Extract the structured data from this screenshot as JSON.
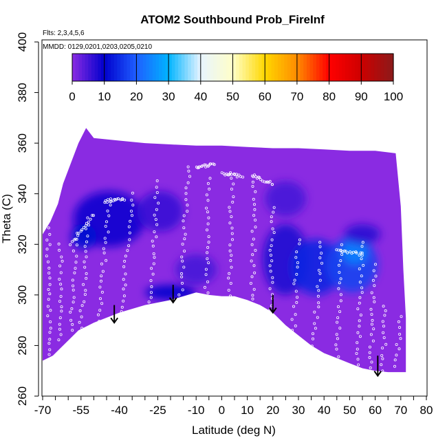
{
  "chart_data": {
    "type": "heatmap",
    "title": "ATOM2 Southbound Prob_FireInf",
    "flights_note": "Flts: 2,3,4,5,6",
    "dates_note": "MMDD: 0129,0201,0203,0205,0210",
    "xlabel": "Latitude (deg N)",
    "ylabel": "Theta (C)",
    "xlim": [
      -70,
      80
    ],
    "ylim": [
      260,
      400
    ],
    "x_tick_values": [
      -70,
      -55,
      -40,
      -25,
      -10,
      0,
      10,
      20,
      30,
      40,
      50,
      60,
      70,
      80
    ],
    "x_tick_labels": [
      "-70",
      "-55",
      "-40",
      "-25",
      "-10",
      "0",
      "10",
      "20",
      "30",
      "40",
      "50",
      "60",
      "70",
      "80"
    ],
    "x_minor_ticks": [
      -65,
      -60,
      -50,
      -45,
      -35,
      -30,
      -20,
      -15,
      -5,
      5,
      15,
      25,
      35,
      45,
      55,
      65,
      75
    ],
    "y_ticks": [
      260,
      280,
      300,
      320,
      340,
      360,
      380,
      400
    ],
    "colorbar": {
      "ticks": [
        0,
        10,
        20,
        30,
        40,
        50,
        60,
        70,
        80,
        90,
        100
      ],
      "colors": [
        "#8a2be2",
        "#0000cd",
        "#1e5fff",
        "#00b4ff",
        "#e8f4ff",
        "#ffffc8",
        "#ffd700",
        "#ff8c00",
        "#ff0000",
        "#cd0000",
        "#8b1a1a"
      ]
    },
    "domain_outline": [
      [
        -70,
        274
      ],
      [
        -66,
        276
      ],
      [
        -60,
        282
      ],
      [
        -56,
        286
      ],
      [
        -50,
        289
      ],
      [
        -40,
        293
      ],
      [
        -30,
        296
      ],
      [
        -20,
        298
      ],
      [
        -15,
        299.5
      ],
      [
        -10,
        301
      ],
      [
        -5,
        300
      ],
      [
        0,
        299.5
      ],
      [
        5,
        299.5
      ],
      [
        10,
        298
      ],
      [
        15,
        296
      ],
      [
        20,
        293
      ],
      [
        25,
        288
      ],
      [
        30,
        284
      ],
      [
        35,
        280
      ],
      [
        40,
        277
      ],
      [
        45,
        275
      ],
      [
        50,
        273
      ],
      [
        55,
        271
      ],
      [
        60,
        270
      ],
      [
        65,
        269.5
      ],
      [
        72,
        269.5
      ],
      [
        72,
        291
      ],
      [
        71,
        310
      ],
      [
        70,
        335
      ],
      [
        68,
        356
      ],
      [
        60,
        357
      ],
      [
        50,
        357
      ],
      [
        40,
        357.5
      ],
      [
        30,
        358
      ],
      [
        20,
        358
      ],
      [
        10,
        358.5
      ],
      [
        0,
        359
      ],
      [
        -10,
        359
      ],
      [
        -20,
        359.5
      ],
      [
        -30,
        360
      ],
      [
        -40,
        361
      ],
      [
        -50,
        362
      ],
      [
        -53,
        366
      ],
      [
        -56,
        360
      ],
      [
        -59,
        352
      ],
      [
        -62,
        344
      ],
      [
        -64,
        336
      ],
      [
        -67,
        329
      ],
      [
        -70,
        324
      ]
    ],
    "enhanced_regions": [
      {
        "center": [
          -44,
          330
        ],
        "radius": [
          14,
          11
        ],
        "value": 9
      },
      {
        "center": [
          -54,
          323
        ],
        "radius": [
          5,
          5
        ],
        "value": 11
      },
      {
        "center": [
          -24,
          333
        ],
        "radius": [
          9,
          8
        ],
        "value": 6
      },
      {
        "center": [
          -10,
          310
        ],
        "radius": [
          8,
          6
        ],
        "value": 5
      },
      {
        "center": [
          25,
          314
        ],
        "radius": [
          9,
          14
        ],
        "value": 8
      },
      {
        "center": [
          25,
          338
        ],
        "radius": [
          8,
          7
        ],
        "value": 5
      },
      {
        "center": [
          37,
          311
        ],
        "radius": [
          10,
          11
        ],
        "value": 14
      },
      {
        "center": [
          51,
          312
        ],
        "radius": [
          10,
          11
        ],
        "value": 17
      },
      {
        "center": [
          52,
          317
        ],
        "radius": [
          5,
          5
        ],
        "value": 24
      },
      {
        "center": [
          55,
          324
        ],
        "radius": [
          7,
          4
        ],
        "value": 7
      },
      {
        "center": [
          -20,
          301
        ],
        "radius": [
          10,
          3
        ],
        "value": 10
      }
    ],
    "arrows": [
      {
        "x": -42,
        "y_top": 296,
        "y_tip": 289
      },
      {
        "x": -19,
        "y_top": 304,
        "y_tip": 297
      },
      {
        "x": 20,
        "y_top": 300,
        "y_tip": 293
      },
      {
        "x": 61,
        "y_top": 276,
        "y_tip": 268
      }
    ],
    "profile_tracks": [
      {
        "x0": -67,
        "x1": -68,
        "y0": 276,
        "y1": 333
      },
      {
        "x0": -63,
        "x1": -63,
        "y0": 282,
        "y1": 320
      },
      {
        "x0": -59,
        "x1": -57,
        "y0": 286,
        "y1": 324
      },
      {
        "x0": -55,
        "x1": -52,
        "y0": 287,
        "y1": 330
      },
      {
        "x0": -48,
        "x1": -44,
        "y0": 290,
        "y1": 338
      },
      {
        "x0": -39,
        "x1": -35,
        "y0": 293,
        "y1": 340
      },
      {
        "x0": -28,
        "x1": -25,
        "y0": 297,
        "y1": 345
      },
      {
        "x0": -16,
        "x1": -13,
        "y0": 300,
        "y1": 351
      },
      {
        "x0": -6,
        "x1": -5,
        "y0": 301,
        "y1": 346
      },
      {
        "x0": 3,
        "x1": 4,
        "y0": 300,
        "y1": 348
      },
      {
        "x0": 12,
        "x1": 13,
        "y0": 298,
        "y1": 347
      },
      {
        "x0": 19,
        "x1": 20,
        "y0": 294,
        "y1": 335
      },
      {
        "x0": 28,
        "x1": 30,
        "y0": 286,
        "y1": 322
      },
      {
        "x0": 36,
        "x1": 39,
        "y0": 280,
        "y1": 321
      },
      {
        "x0": 45,
        "x1": 47,
        "y0": 276,
        "y1": 320
      },
      {
        "x0": 53,
        "x1": 55,
        "y0": 272,
        "y1": 321
      },
      {
        "x0": 58,
        "x1": 60,
        "y0": 271,
        "y1": 312
      },
      {
        "x0": 63,
        "x1": 64,
        "y0": 270,
        "y1": 296
      },
      {
        "x0": 68,
        "x1": 70,
        "y0": 272,
        "y1": 291
      }
    ],
    "descent_segments": [
      {
        "x0": -59,
        "x1": -50,
        "y0": 320,
        "y1": 332
      },
      {
        "x0": -46,
        "x1": -38,
        "y0": 337,
        "y1": 338
      },
      {
        "x0": -10,
        "x1": -3,
        "y0": 350,
        "y1": 352
      },
      {
        "x0": 0,
        "x1": 8,
        "y0": 348,
        "y1": 347
      },
      {
        "x0": 12,
        "x1": 20,
        "y0": 347,
        "y1": 344
      },
      {
        "x0": 45,
        "x1": 55,
        "y0": 318,
        "y1": 316
      }
    ],
    "grid": false,
    "legend": "colorbar-top"
  }
}
